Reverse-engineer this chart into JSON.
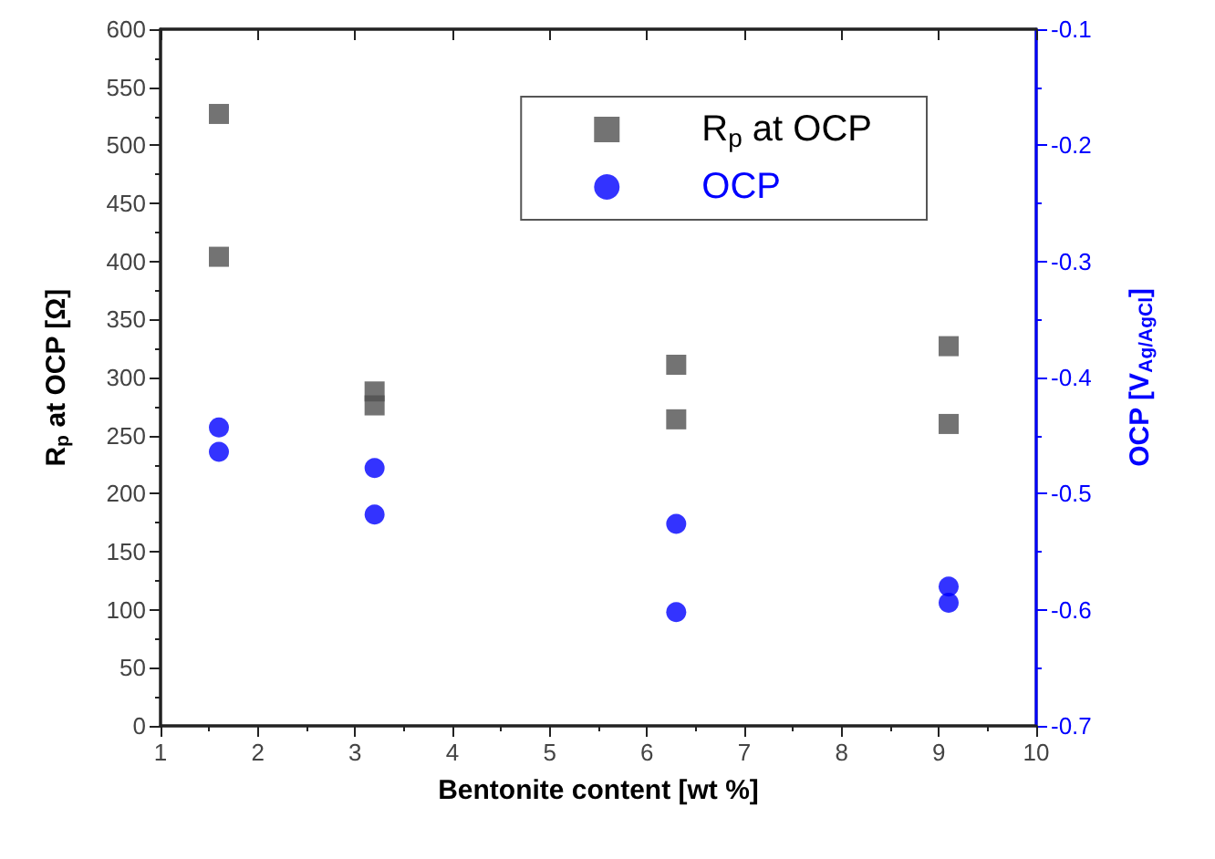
{
  "chart_data": {
    "type": "scatter",
    "xlabel": "Bentonite content [wt %]",
    "ylabel": "R$_{p}$ at OCP [Ω]",
    "y2label": "OCP [V$_{Ag/AgCl}$]",
    "xlim": [
      1,
      10
    ],
    "xticks": [
      1,
      2,
      3,
      4,
      5,
      6,
      7,
      8,
      9,
      10
    ],
    "ylim": [
      0,
      600
    ],
    "yticks": [
      0,
      50,
      100,
      150,
      200,
      250,
      300,
      350,
      400,
      450,
      500,
      550,
      600
    ],
    "y2lim": [
      -0.7,
      -0.1
    ],
    "y2ticks": [
      -0.7,
      -0.6,
      -0.5,
      -0.4,
      -0.3,
      -0.2,
      -0.1
    ],
    "legend": "top right",
    "grid": false,
    "series": [
      {
        "name": "R$_{p}$ at OCP",
        "color": "#505050",
        "marker": "square",
        "x": [
          1.6,
          1.6,
          3.2,
          3.2,
          6.3,
          6.3,
          9.1,
          9.1
        ],
        "values": [
          527,
          404,
          288,
          276,
          311,
          264,
          327,
          260
        ]
      },
      {
        "name": "OCP",
        "color": "#0000ff",
        "marker": "circle",
        "axis": "y2",
        "x": [
          1.6,
          1.6,
          3.2,
          3.2,
          6.3,
          6.3,
          9.1,
          9.1
        ],
        "values": [
          -0.443,
          -0.464,
          -0.478,
          -0.518,
          -0.526,
          -0.602,
          -0.58,
          -0.594
        ]
      }
    ]
  }
}
